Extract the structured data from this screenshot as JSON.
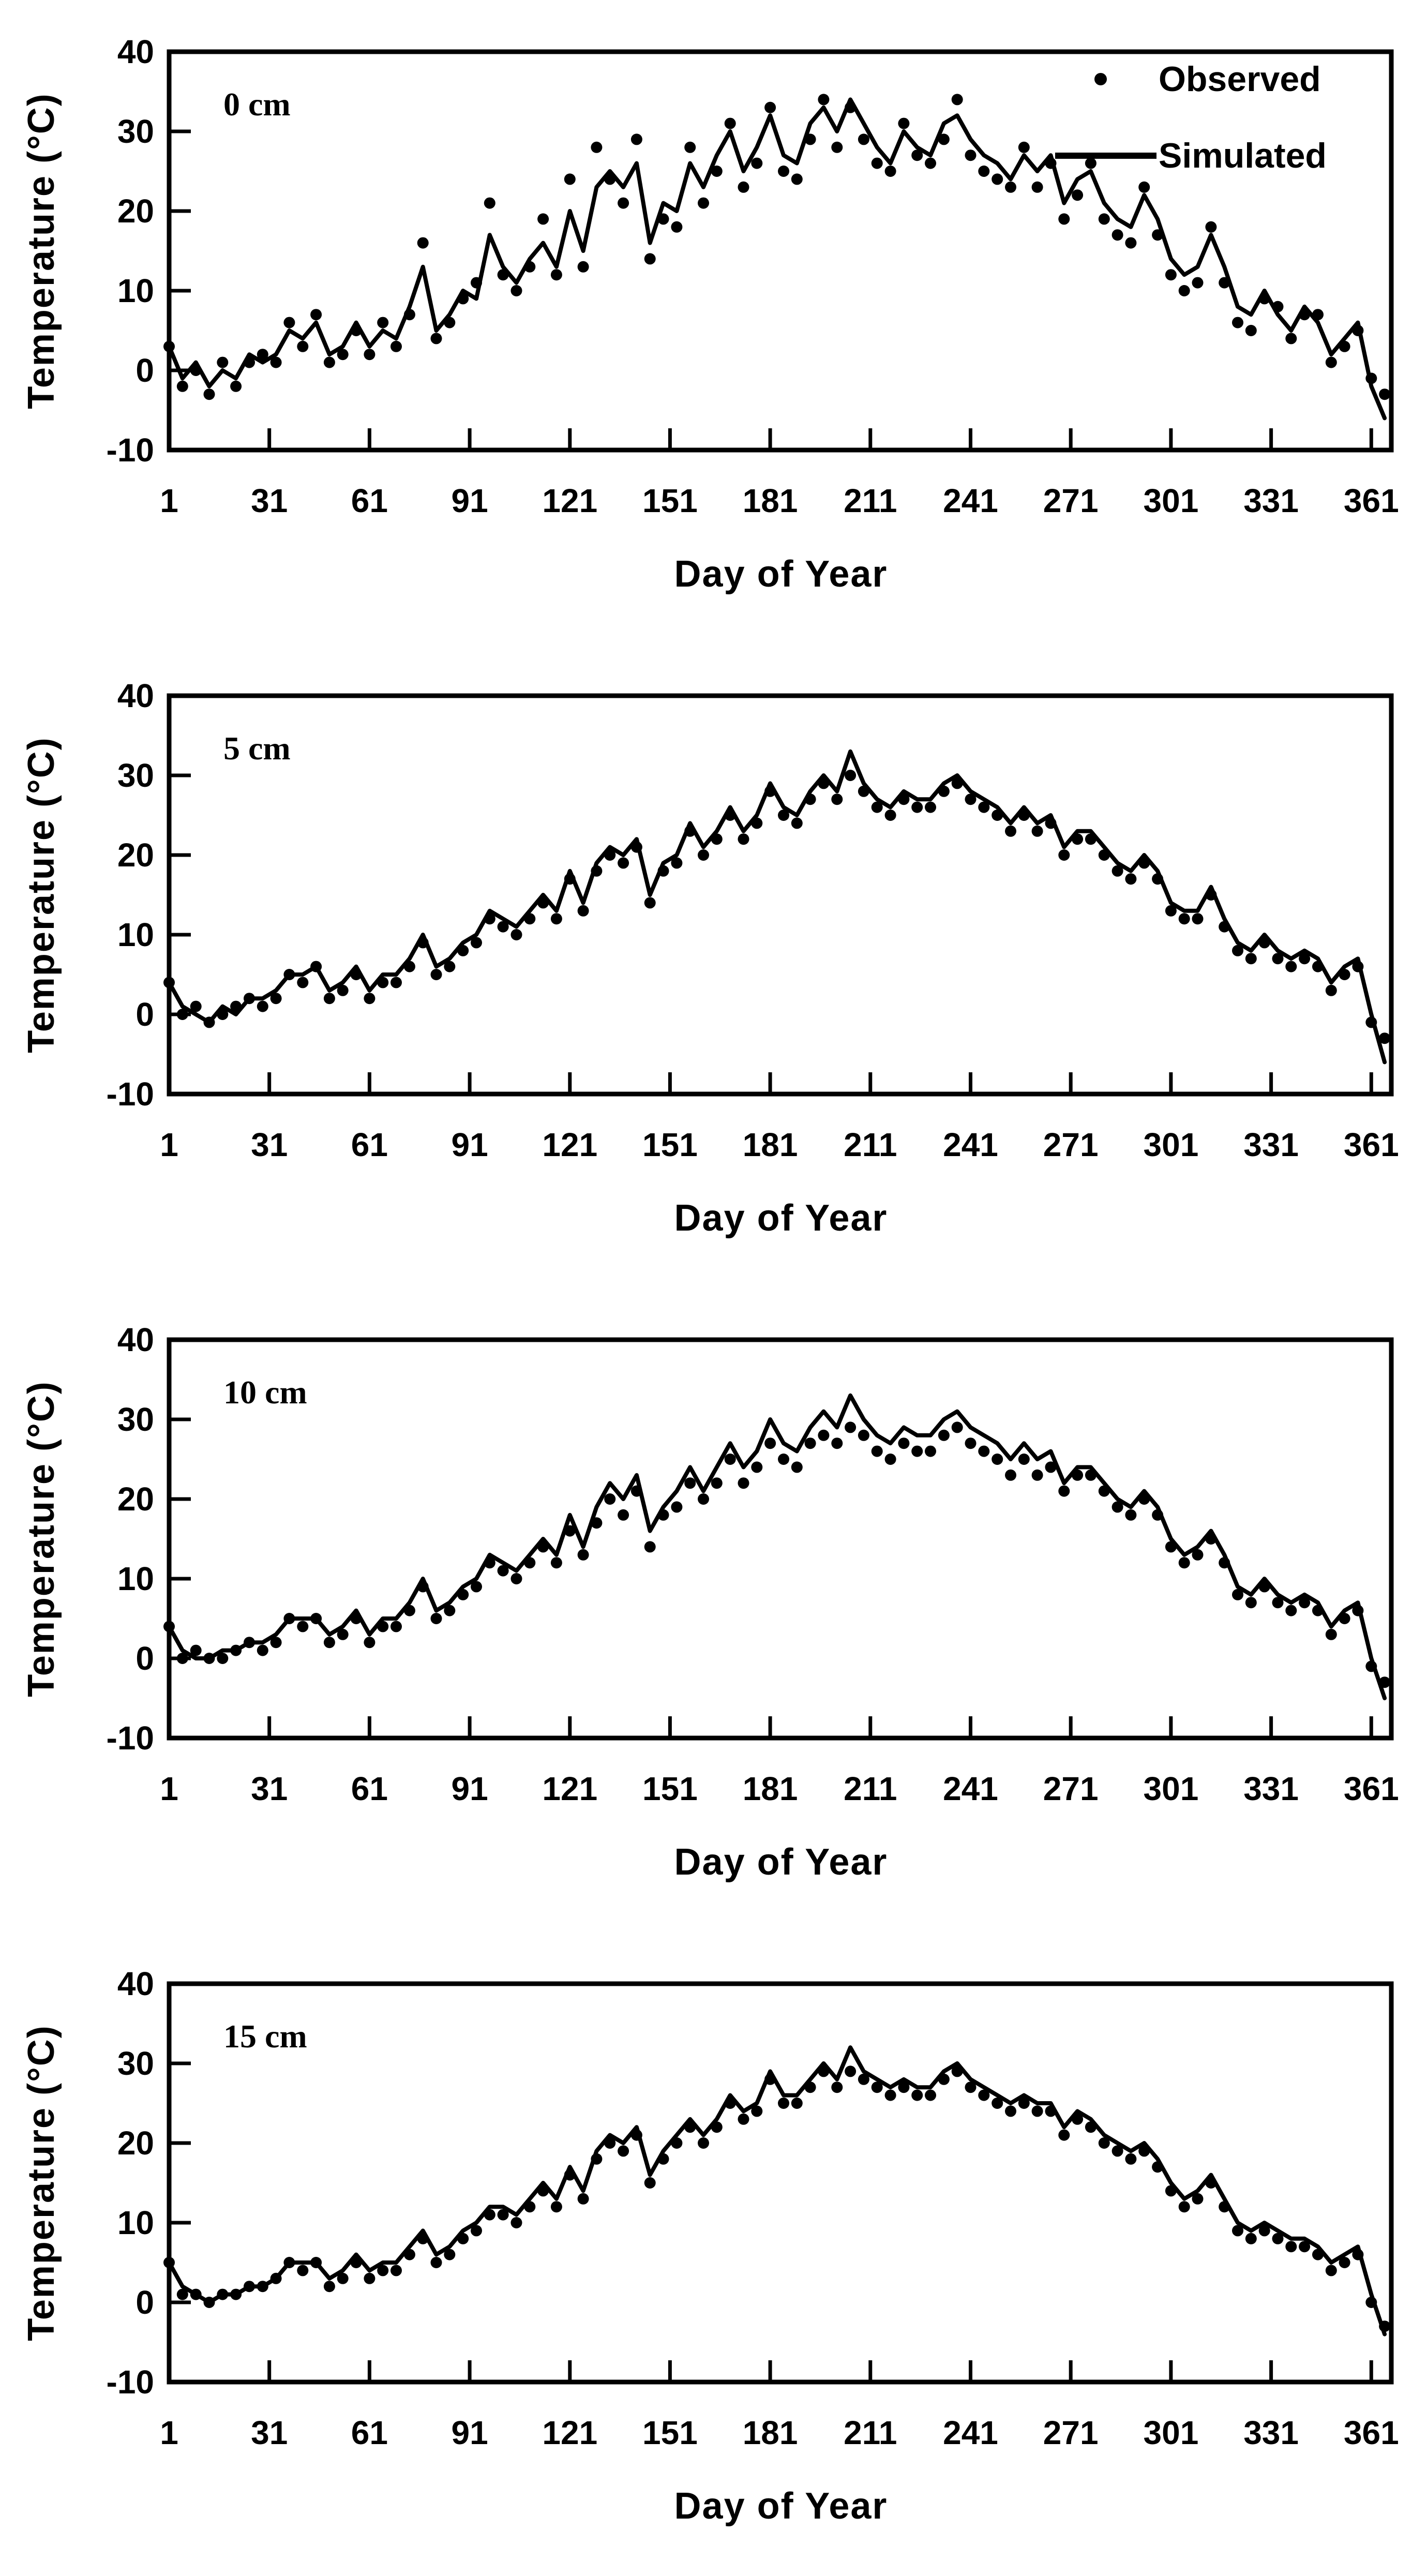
{
  "figure": {
    "legend": {
      "observed_label": "Observed",
      "simulated_label": "Simulated"
    },
    "series_color": "#000000",
    "background": "#ffffff"
  },
  "chart_data": {
    "type": "line",
    "x_label": "Day of Year",
    "y_label": "Temperature (°C)",
    "x_ticks": [
      1,
      31,
      61,
      91,
      121,
      151,
      181,
      211,
      241,
      271,
      301,
      331,
      361
    ],
    "y_ticks": [
      40,
      30,
      20,
      10,
      0,
      -10
    ],
    "xlim": [
      1,
      366
    ],
    "ylim": [
      -10,
      40
    ],
    "grid": false,
    "legend_position": "top-right-first-panel",
    "legend": [
      "Observed",
      "Simulated"
    ],
    "x": [
      1,
      5,
      9,
      13,
      17,
      21,
      25,
      29,
      33,
      37,
      41,
      45,
      49,
      53,
      57,
      61,
      65,
      69,
      73,
      77,
      81,
      85,
      89,
      93,
      97,
      101,
      105,
      109,
      113,
      117,
      121,
      125,
      129,
      133,
      137,
      141,
      145,
      149,
      153,
      157,
      161,
      165,
      169,
      173,
      177,
      181,
      185,
      189,
      193,
      197,
      201,
      205,
      209,
      213,
      217,
      221,
      225,
      229,
      233,
      237,
      241,
      245,
      249,
      253,
      257,
      261,
      265,
      269,
      273,
      277,
      281,
      285,
      289,
      293,
      297,
      301,
      305,
      309,
      313,
      317,
      321,
      325,
      329,
      333,
      337,
      341,
      345,
      349,
      353,
      357,
      361,
      365
    ],
    "panels": [
      {
        "label": "0 cm",
        "simulated": [
          3,
          -1,
          1,
          -2,
          0,
          -1,
          2,
          1,
          2,
          5,
          4,
          6,
          2,
          3,
          6,
          3,
          5,
          4,
          8,
          13,
          5,
          7,
          10,
          9,
          17,
          13,
          11,
          14,
          16,
          13,
          20,
          15,
          23,
          25,
          23,
          26,
          16,
          21,
          20,
          26,
          23,
          27,
          30,
          25,
          28,
          32,
          27,
          26,
          31,
          33,
          30,
          34,
          31,
          28,
          26,
          30,
          28,
          27,
          31,
          32,
          29,
          27,
          26,
          24,
          27,
          25,
          27,
          21,
          24,
          25,
          21,
          19,
          18,
          22,
          19,
          14,
          12,
          13,
          17,
          13,
          8,
          7,
          10,
          7,
          5,
          8,
          6,
          2,
          4,
          6,
          -2,
          -6
        ],
        "observed": [
          3,
          -2,
          0,
          -3,
          1,
          -2,
          1,
          2,
          1,
          6,
          3,
          7,
          1,
          2,
          5,
          2,
          6,
          3,
          7,
          16,
          4,
          6,
          9,
          11,
          21,
          12,
          10,
          13,
          19,
          12,
          24,
          13,
          28,
          24,
          21,
          29,
          14,
          19,
          18,
          28,
          21,
          25,
          31,
          23,
          26,
          33,
          25,
          24,
          29,
          34,
          28,
          33,
          29,
          26,
          25,
          31,
          27,
          26,
          29,
          34,
          27,
          25,
          24,
          23,
          28,
          23,
          26,
          19,
          22,
          26,
          19,
          17,
          16,
          23,
          17,
          12,
          10,
          11,
          18,
          11,
          6,
          5,
          9,
          8,
          4,
          7,
          7,
          1,
          3,
          5,
          -1,
          -3
        ]
      },
      {
        "label": "5 cm",
        "simulated": [
          4,
          1,
          0,
          -1,
          1,
          0,
          2,
          2,
          3,
          5,
          5,
          6,
          3,
          4,
          6,
          3,
          5,
          5,
          7,
          10,
          6,
          7,
          9,
          10,
          13,
          12,
          11,
          13,
          15,
          13,
          18,
          14,
          19,
          21,
          20,
          22,
          15,
          19,
          20,
          24,
          21,
          23,
          26,
          23,
          25,
          29,
          26,
          25,
          28,
          30,
          28,
          33,
          29,
          27,
          26,
          28,
          27,
          27,
          29,
          30,
          28,
          27,
          26,
          24,
          26,
          24,
          25,
          21,
          23,
          23,
          21,
          19,
          18,
          20,
          18,
          14,
          13,
          13,
          16,
          12,
          9,
          8,
          10,
          8,
          7,
          8,
          7,
          4,
          6,
          7,
          0,
          -6
        ],
        "observed": [
          4,
          0,
          1,
          -1,
          0,
          1,
          2,
          1,
          2,
          5,
          4,
          6,
          2,
          3,
          5,
          2,
          4,
          4,
          6,
          9,
          5,
          6,
          8,
          9,
          12,
          11,
          10,
          12,
          14,
          12,
          17,
          13,
          18,
          20,
          19,
          21,
          14,
          18,
          19,
          23,
          20,
          22,
          25,
          22,
          24,
          28,
          25,
          24,
          27,
          29,
          27,
          30,
          28,
          26,
          25,
          27,
          26,
          26,
          28,
          29,
          27,
          26,
          25,
          23,
          25,
          23,
          24,
          20,
          22,
          22,
          20,
          18,
          17,
          19,
          17,
          13,
          12,
          12,
          15,
          11,
          8,
          7,
          9,
          7,
          6,
          7,
          6,
          3,
          5,
          6,
          -1,
          -3
        ]
      },
      {
        "label": "10 cm",
        "simulated": [
          4,
          1,
          0,
          0,
          1,
          1,
          2,
          2,
          3,
          5,
          5,
          5,
          3,
          4,
          6,
          3,
          5,
          5,
          7,
          10,
          6,
          7,
          9,
          10,
          13,
          12,
          11,
          13,
          15,
          13,
          18,
          14,
          19,
          22,
          20,
          23,
          16,
          19,
          21,
          24,
          21,
          24,
          27,
          24,
          26,
          30,
          27,
          26,
          29,
          31,
          29,
          33,
          30,
          28,
          27,
          29,
          28,
          28,
          30,
          31,
          29,
          28,
          27,
          25,
          27,
          25,
          26,
          22,
          24,
          24,
          22,
          20,
          19,
          21,
          19,
          15,
          13,
          14,
          16,
          13,
          9,
          8,
          10,
          8,
          7,
          8,
          7,
          4,
          6,
          7,
          0,
          -5
        ],
        "observed": [
          4,
          0,
          1,
          0,
          0,
          1,
          2,
          1,
          2,
          5,
          4,
          5,
          2,
          3,
          5,
          2,
          4,
          4,
          6,
          9,
          5,
          6,
          8,
          9,
          12,
          11,
          10,
          12,
          14,
          12,
          16,
          13,
          17,
          20,
          18,
          21,
          14,
          18,
          19,
          22,
          20,
          22,
          25,
          22,
          24,
          27,
          25,
          24,
          27,
          28,
          27,
          29,
          28,
          26,
          25,
          27,
          26,
          26,
          28,
          29,
          27,
          26,
          25,
          23,
          25,
          23,
          24,
          21,
          23,
          23,
          21,
          19,
          18,
          20,
          18,
          14,
          12,
          13,
          15,
          12,
          8,
          7,
          9,
          7,
          6,
          7,
          6,
          3,
          5,
          6,
          -1,
          -3
        ]
      },
      {
        "label": "15 cm",
        "simulated": [
          5,
          2,
          1,
          0,
          1,
          1,
          2,
          2,
          3,
          5,
          5,
          5,
          3,
          4,
          6,
          4,
          5,
          5,
          7,
          9,
          6,
          7,
          9,
          10,
          12,
          12,
          11,
          13,
          15,
          13,
          17,
          14,
          19,
          21,
          20,
          22,
          16,
          19,
          21,
          23,
          21,
          23,
          26,
          24,
          25,
          29,
          26,
          26,
          28,
          30,
          28,
          32,
          29,
          28,
          27,
          28,
          27,
          27,
          29,
          30,
          28,
          27,
          26,
          25,
          26,
          25,
          25,
          22,
          24,
          23,
          21,
          20,
          19,
          20,
          18,
          15,
          13,
          14,
          16,
          13,
          10,
          9,
          10,
          9,
          8,
          8,
          7,
          5,
          6,
          7,
          1,
          -4
        ],
        "observed": [
          5,
          1,
          1,
          0,
          1,
          1,
          2,
          2,
          3,
          5,
          4,
          5,
          2,
          3,
          5,
          3,
          4,
          4,
          6,
          8,
          5,
          6,
          8,
          9,
          11,
          11,
          10,
          12,
          14,
          12,
          16,
          13,
          18,
          20,
          19,
          21,
          15,
          18,
          20,
          22,
          20,
          22,
          25,
          23,
          24,
          28,
          25,
          25,
          27,
          29,
          27,
          29,
          28,
          27,
          26,
          27,
          26,
          26,
          28,
          29,
          27,
          26,
          25,
          24,
          25,
          24,
          24,
          21,
          23,
          22,
          20,
          19,
          18,
          19,
          17,
          14,
          12,
          13,
          15,
          12,
          9,
          8,
          9,
          8,
          7,
          7,
          6,
          4,
          5,
          6,
          0,
          -3
        ]
      }
    ]
  }
}
